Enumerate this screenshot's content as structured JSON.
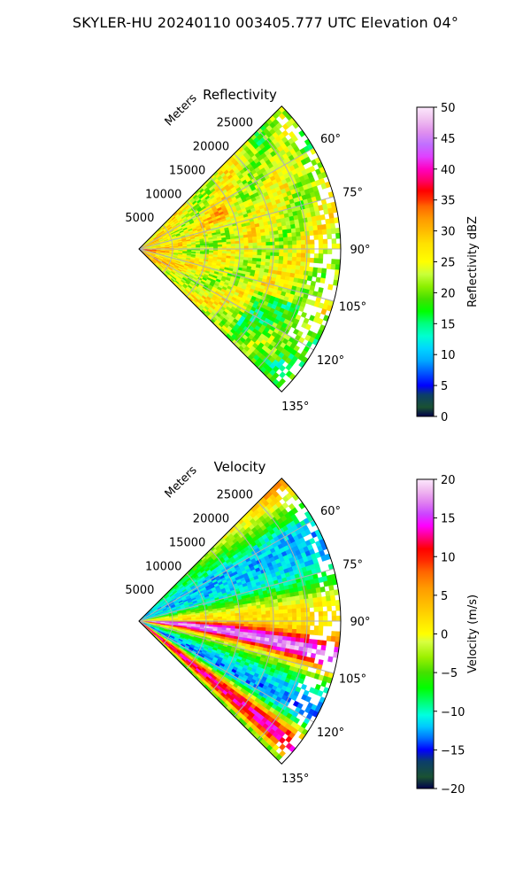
{
  "figure_title": "SKYLER-HU  20240110  003405.777 UTC Elevation 04°",
  "chart_data": [
    {
      "type": "heatmap",
      "projection": "polar sector (PPI)",
      "title": "Reflectivity",
      "range_label": "Meters",
      "range_ticks": [
        "5000",
        "10000",
        "15000",
        "20000",
        "25000"
      ],
      "range_max": 30000,
      "azimuth_ticks": [
        "60°",
        "75°",
        "90°",
        "105°",
        "120°",
        "135°"
      ],
      "azimuth_range": [
        45,
        135
      ],
      "grid": true,
      "colorbar": {
        "label": "Reflectivity dBZ",
        "range": [
          0,
          50
        ],
        "ticks": [
          "0",
          "5",
          "10",
          "15",
          "20",
          "25",
          "30",
          "35",
          "40",
          "45",
          "50"
        ],
        "colormap": [
          {
            "v": 0,
            "c": "#02024a"
          },
          {
            "v": 1.5,
            "c": "#1a5232"
          },
          {
            "v": 3.5,
            "c": "#0b3e6a"
          },
          {
            "v": 5,
            "c": "#0000ff"
          },
          {
            "v": 7,
            "c": "#0055ff"
          },
          {
            "v": 9,
            "c": "#00a8ff"
          },
          {
            "v": 11,
            "c": "#00d6ff"
          },
          {
            "v": 13,
            "c": "#00ffd0"
          },
          {
            "v": 15,
            "c": "#00ff80"
          },
          {
            "v": 17,
            "c": "#00ff00"
          },
          {
            "v": 19,
            "c": "#44e000"
          },
          {
            "v": 21,
            "c": "#8cf000"
          },
          {
            "v": 23,
            "c": "#c8ff3a"
          },
          {
            "v": 25,
            "c": "#ffff00"
          },
          {
            "v": 28,
            "c": "#ffe000"
          },
          {
            "v": 30,
            "c": "#ffbb00"
          },
          {
            "v": 32,
            "c": "#ff9900"
          },
          {
            "v": 34,
            "c": "#ff6600"
          },
          {
            "v": 35,
            "c": "#ff3300"
          },
          {
            "v": 36.5,
            "c": "#ff0000"
          },
          {
            "v": 38,
            "c": "#ff0060"
          },
          {
            "v": 40,
            "c": "#ff00c0"
          },
          {
            "v": 42,
            "c": "#e040ff"
          },
          {
            "v": 44,
            "c": "#c070ff"
          },
          {
            "v": 46,
            "c": "#e090ee"
          },
          {
            "v": 48,
            "c": "#f0c0f0"
          },
          {
            "v": 50,
            "c": "#fce8fc"
          }
        ]
      }
    },
    {
      "type": "heatmap",
      "projection": "polar sector (PPI)",
      "title": "Velocity",
      "range_label": "Meters",
      "range_ticks": [
        "5000",
        "10000",
        "15000",
        "20000",
        "25000"
      ],
      "range_max": 30000,
      "azimuth_ticks": [
        "60°",
        "75°",
        "90°",
        "105°",
        "120°",
        "135°"
      ],
      "azimuth_range": [
        45,
        135
      ],
      "grid": true,
      "colorbar": {
        "label": "Velocity (m/s)",
        "range": [
          -20,
          20
        ],
        "ticks": [
          "−20",
          "−15",
          "−10",
          "−5",
          "0",
          "5",
          "10",
          "15",
          "20"
        ],
        "colormap": [
          {
            "v": -20,
            "c": "#02024a"
          },
          {
            "v": -18.5,
            "c": "#1a5232"
          },
          {
            "v": -16.5,
            "c": "#0b3e6a"
          },
          {
            "v": -15,
            "c": "#0000ff"
          },
          {
            "v": -13.5,
            "c": "#0070ff"
          },
          {
            "v": -12,
            "c": "#00c8ff"
          },
          {
            "v": -10.5,
            "c": "#00ffe0"
          },
          {
            "v": -9,
            "c": "#00ff80"
          },
          {
            "v": -7,
            "c": "#00ff00"
          },
          {
            "v": -5,
            "c": "#44e000"
          },
          {
            "v": -3,
            "c": "#9cf000"
          },
          {
            "v": -1,
            "c": "#d8ff40"
          },
          {
            "v": 0,
            "c": "#ffff00"
          },
          {
            "v": 2,
            "c": "#ffdd00"
          },
          {
            "v": 4,
            "c": "#ffbb00"
          },
          {
            "v": 6,
            "c": "#ff9900"
          },
          {
            "v": 8,
            "c": "#ff6600"
          },
          {
            "v": 9.5,
            "c": "#ff2a00"
          },
          {
            "v": 11,
            "c": "#ff0000"
          },
          {
            "v": 12.5,
            "c": "#ff0080"
          },
          {
            "v": 14,
            "c": "#ff00ff"
          },
          {
            "v": 15.5,
            "c": "#cc44ff"
          },
          {
            "v": 17,
            "c": "#e080f0"
          },
          {
            "v": 18.5,
            "c": "#f0b8f0"
          },
          {
            "v": 20,
            "c": "#fce8fc"
          }
        ]
      }
    }
  ]
}
